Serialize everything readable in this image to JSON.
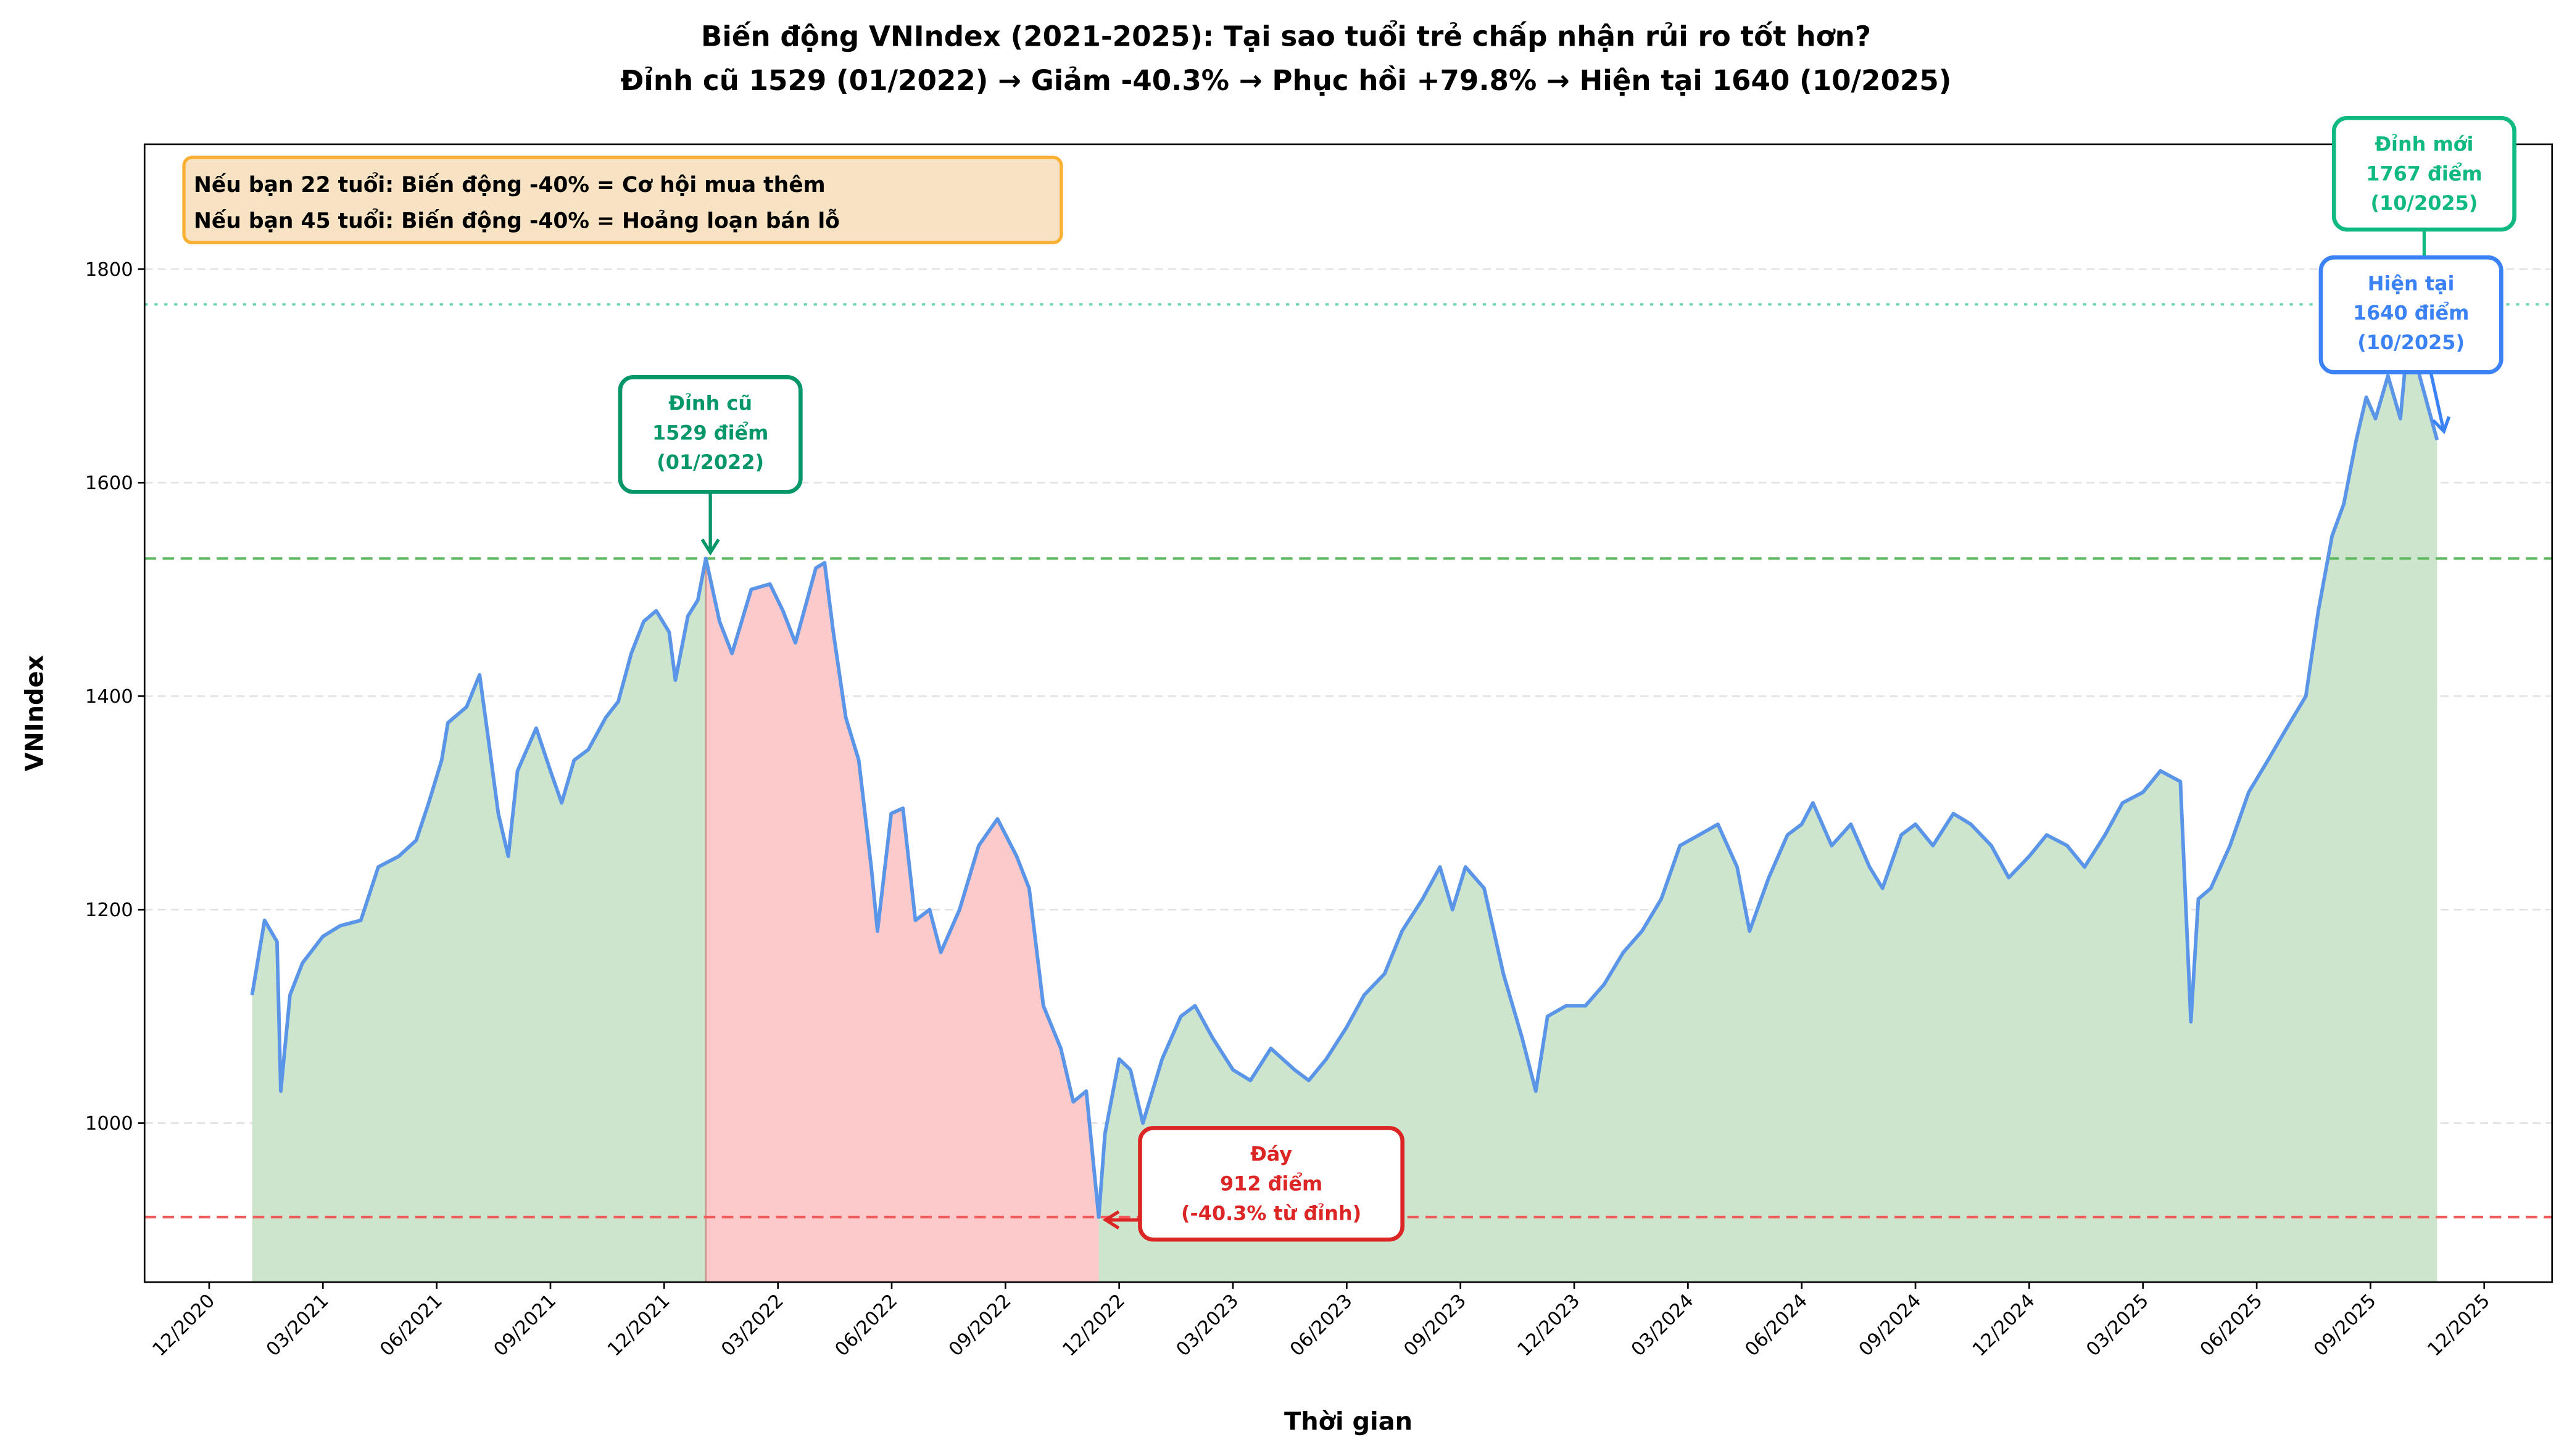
{
  "chart_data": {
    "type": "area",
    "title": "Biến động VNIndex (2021-2025): Tại sao tuổi trẻ chấp nhận rủi ro tốt hơn?",
    "subtitle": "Đỉnh cũ 1529 (01/2022) → Giảm -40.3% → Phục hồi +79.8% → Hiện tại 1640 (10/2025)",
    "xlabel": "Thời gian",
    "ylabel": "VNIndex",
    "xlim": [
      "2020-10-10",
      "2026-01-25"
    ],
    "ylim": [
      851,
      1917
    ],
    "x_ticks": [
      "12/2020",
      "03/2021",
      "06/2021",
      "09/2021",
      "12/2021",
      "03/2022",
      "06/2022",
      "09/2022",
      "12/2022",
      "03/2023",
      "06/2023",
      "09/2023",
      "12/2023",
      "03/2024",
      "06/2024",
      "09/2024",
      "12/2024",
      "03/2025",
      "06/2025",
      "09/2025",
      "12/2025"
    ],
    "y_ticks": [
      1000,
      1200,
      1400,
      1600,
      1800
    ],
    "grid": "y, dashed",
    "series": [
      {
        "color": "#5b95e8",
        "points": [
          [
            "2021-01-05",
            1120
          ],
          [
            "2021-01-15",
            1190
          ],
          [
            "2021-01-25",
            1170
          ],
          [
            "2021-01-28",
            1030
          ],
          [
            "2021-02-05",
            1120
          ],
          [
            "2021-02-15",
            1150
          ],
          [
            "2021-03-01",
            1175
          ],
          [
            "2021-03-15",
            1185
          ],
          [
            "2021-04-01",
            1190
          ],
          [
            "2021-04-15",
            1240
          ],
          [
            "2021-05-01",
            1250
          ],
          [
            "2021-05-15",
            1265
          ],
          [
            "2021-05-25",
            1300
          ],
          [
            "2021-06-05",
            1340
          ],
          [
            "2021-06-10",
            1375
          ],
          [
            "2021-06-25",
            1390
          ],
          [
            "2021-07-05",
            1420
          ],
          [
            "2021-07-12",
            1360
          ],
          [
            "2021-07-20",
            1290
          ],
          [
            "2021-07-28",
            1250
          ],
          [
            "2021-08-05",
            1330
          ],
          [
            "2021-08-20",
            1370
          ],
          [
            "2021-09-01",
            1330
          ],
          [
            "2021-09-10",
            1300
          ],
          [
            "2021-09-20",
            1340
          ],
          [
            "2021-10-01",
            1350
          ],
          [
            "2021-10-15",
            1380
          ],
          [
            "2021-10-25",
            1395
          ],
          [
            "2021-11-05",
            1440
          ],
          [
            "2021-11-15",
            1470
          ],
          [
            "2021-11-25",
            1480
          ],
          [
            "2021-12-05",
            1460
          ],
          [
            "2021-12-10",
            1415
          ],
          [
            "2021-12-20",
            1475
          ],
          [
            "2021-12-28",
            1490
          ],
          [
            "2022-01-04",
            1529
          ],
          [
            "2022-01-15",
            1470
          ],
          [
            "2022-01-25",
            1440
          ],
          [
            "2022-02-10",
            1500
          ],
          [
            "2022-02-25",
            1505
          ],
          [
            "2022-03-05",
            1480
          ],
          [
            "2022-03-15",
            1450
          ],
          [
            "2022-04-01",
            1520
          ],
          [
            "2022-04-08",
            1525
          ],
          [
            "2022-04-15",
            1460
          ],
          [
            "2022-04-25",
            1380
          ],
          [
            "2022-05-05",
            1340
          ],
          [
            "2022-05-15",
            1240
          ],
          [
            "2022-05-20",
            1180
          ],
          [
            "2022-05-31",
            1290
          ],
          [
            "2022-06-10",
            1295
          ],
          [
            "2022-06-20",
            1190
          ],
          [
            "2022-07-01",
            1200
          ],
          [
            "2022-07-10",
            1160
          ],
          [
            "2022-07-25",
            1200
          ],
          [
            "2022-08-10",
            1260
          ],
          [
            "2022-08-25",
            1285
          ],
          [
            "2022-09-10",
            1250
          ],
          [
            "2022-09-20",
            1220
          ],
          [
            "2022-10-01",
            1110
          ],
          [
            "2022-10-15",
            1070
          ],
          [
            "2022-10-25",
            1020
          ],
          [
            "2022-11-05",
            1030
          ],
          [
            "2022-11-15",
            912
          ],
          [
            "2022-11-20",
            990
          ],
          [
            "2022-12-01",
            1060
          ],
          [
            "2022-12-10",
            1050
          ],
          [
            "2022-12-20",
            1000
          ],
          [
            "2023-01-05",
            1060
          ],
          [
            "2023-01-20",
            1100
          ],
          [
            "2023-02-01",
            1110
          ],
          [
            "2023-02-15",
            1080
          ],
          [
            "2023-03-01",
            1050
          ],
          [
            "2023-03-15",
            1040
          ],
          [
            "2023-04-01",
            1070
          ],
          [
            "2023-04-20",
            1050
          ],
          [
            "2023-05-01",
            1040
          ],
          [
            "2023-05-15",
            1060
          ],
          [
            "2023-06-01",
            1090
          ],
          [
            "2023-06-15",
            1120
          ],
          [
            "2023-07-01",
            1140
          ],
          [
            "2023-07-15",
            1180
          ],
          [
            "2023-08-01",
            1210
          ],
          [
            "2023-08-15",
            1240
          ],
          [
            "2023-08-25",
            1200
          ],
          [
            "2023-09-05",
            1240
          ],
          [
            "2023-09-20",
            1220
          ],
          [
            "2023-10-05",
            1140
          ],
          [
            "2023-10-20",
            1080
          ],
          [
            "2023-10-31",
            1030
          ],
          [
            "2023-11-10",
            1100
          ],
          [
            "2023-11-25",
            1110
          ],
          [
            "2023-12-10",
            1110
          ],
          [
            "2023-12-25",
            1130
          ],
          [
            "2024-01-10",
            1160
          ],
          [
            "2024-01-25",
            1180
          ],
          [
            "2024-02-10",
            1210
          ],
          [
            "2024-02-25",
            1260
          ],
          [
            "2024-03-10",
            1270
          ],
          [
            "2024-03-25",
            1280
          ],
          [
            "2024-04-10",
            1240
          ],
          [
            "2024-04-20",
            1180
          ],
          [
            "2024-05-05",
            1230
          ],
          [
            "2024-05-20",
            1270
          ],
          [
            "2024-06-01",
            1280
          ],
          [
            "2024-06-10",
            1300
          ],
          [
            "2024-06-25",
            1260
          ],
          [
            "2024-07-10",
            1280
          ],
          [
            "2024-07-25",
            1240
          ],
          [
            "2024-08-05",
            1220
          ],
          [
            "2024-08-20",
            1270
          ],
          [
            "2024-09-01",
            1280
          ],
          [
            "2024-09-15",
            1260
          ],
          [
            "2024-10-01",
            1290
          ],
          [
            "2024-10-15",
            1280
          ],
          [
            "2024-11-01",
            1260
          ],
          [
            "2024-11-15",
            1230
          ],
          [
            "2024-12-01",
            1250
          ],
          [
            "2024-12-15",
            1270
          ],
          [
            "2025-01-01",
            1260
          ],
          [
            "2025-01-15",
            1240
          ],
          [
            "2025-02-01",
            1270
          ],
          [
            "2025-02-15",
            1300
          ],
          [
            "2025-03-01",
            1310
          ],
          [
            "2025-03-15",
            1330
          ],
          [
            "2025-03-31",
            1320
          ],
          [
            "2025-04-09",
            1095
          ],
          [
            "2025-04-15",
            1210
          ],
          [
            "2025-04-25",
            1220
          ],
          [
            "2025-05-10",
            1260
          ],
          [
            "2025-05-25",
            1310
          ],
          [
            "2025-06-10",
            1340
          ],
          [
            "2025-06-25",
            1370
          ],
          [
            "2025-07-10",
            1400
          ],
          [
            "2025-07-20",
            1480
          ],
          [
            "2025-07-31",
            1550
          ],
          [
            "2025-08-10",
            1580
          ],
          [
            "2025-08-20",
            1640
          ],
          [
            "2025-08-28",
            1680
          ],
          [
            "2025-09-05",
            1660
          ],
          [
            "2025-09-15",
            1700
          ],
          [
            "2025-09-25",
            1660
          ],
          [
            "2025-10-03",
            1767
          ],
          [
            "2025-10-10",
            1700
          ],
          [
            "2025-10-17",
            1670
          ],
          [
            "2025-10-24",
            1640
          ]
        ]
      }
    ],
    "drawdown_period": [
      "2022-01-04",
      "2022-11-15"
    ],
    "fill_colors": {
      "normal": "#cde5cd",
      "drawdown": "#fccaca"
    },
    "reference_lines": [
      {
        "value": 1529,
        "style": "dashed",
        "color": "#5cb85c"
      },
      {
        "value": 912,
        "style": "dashed",
        "color": "#f25c5c"
      },
      {
        "value": 1767,
        "style": "dotted",
        "color": "#6fd3ad"
      }
    ],
    "annotations": [
      {
        "key": "old_peak",
        "lines": [
          "Đỉnh cũ",
          "1529 điểm",
          "(01/2022)"
        ],
        "date": "2022-01-04",
        "value": 1529,
        "color": "#059669"
      },
      {
        "key": "bottom",
        "lines": [
          "Đáy",
          "912 điểm",
          "(-40.3% từ đỉnh)"
        ],
        "date": "2022-11-15",
        "value": 912,
        "color": "#dc2626"
      },
      {
        "key": "new_peak",
        "lines": [
          "Đỉnh mới",
          "1767 điểm",
          "(10/2025)"
        ],
        "date": "2025-10-03",
        "value": 1767,
        "color": "#10b981"
      },
      {
        "key": "current",
        "lines": [
          "Hiện tại",
          "1640 điểm",
          "(10/2025)"
        ],
        "date": "2025-10-24",
        "value": 1640,
        "color": "#3b82f6"
      }
    ],
    "info_box": {
      "lines": [
        "Nếu bạn 22 tuổi: Biến động -40% = Cơ hội mua thêm",
        "Nếu bạn 45 tuổi: Biến động -40% = Hoảng loạn bán lỗ"
      ],
      "fill": "#f7e3c3",
      "border": "#fbb034"
    }
  }
}
